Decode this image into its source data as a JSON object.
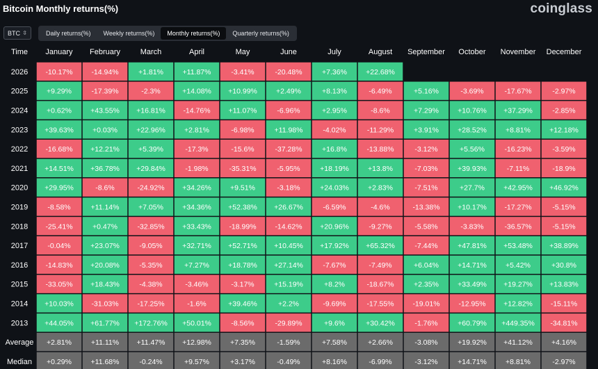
{
  "header": {
    "title": "Bitcoin Monthly returns(%)",
    "brand": "coinglass"
  },
  "controls": {
    "asset": "BTC",
    "tabs": [
      {
        "label": "Daily returns(%)",
        "active": false
      },
      {
        "label": "Weekly returns(%)",
        "active": false
      },
      {
        "label": "Monthly returns(%)",
        "active": true
      },
      {
        "label": "Quarterly returns(%)",
        "active": false
      }
    ]
  },
  "colors": {
    "positive": "#3dcc8a",
    "negative": "#f0616f",
    "summary": "#6b6b6b",
    "background": "#0f1217"
  },
  "chart_data": {
    "type": "table",
    "corner_label": "Time",
    "columns": [
      "January",
      "February",
      "March",
      "April",
      "May",
      "June",
      "July",
      "August",
      "September",
      "October",
      "November",
      "December"
    ],
    "rows": [
      {
        "label": "2026",
        "values": [
          "-10.17%",
          "-14.94%",
          "+1.81%",
          "+11.87%",
          "-3.41%",
          "-20.48%",
          "+7.36%",
          "+22.68%",
          null,
          null,
          null,
          null
        ]
      },
      {
        "label": "2025",
        "values": [
          "+9.29%",
          "-17.39%",
          "-2.3%",
          "+14.08%",
          "+10.99%",
          "+2.49%",
          "+8.13%",
          "-6.49%",
          "+5.16%",
          "-3.69%",
          "-17.67%",
          "-2.97%"
        ]
      },
      {
        "label": "2024",
        "values": [
          "+0.62%",
          "+43.55%",
          "+16.81%",
          "-14.76%",
          "+11.07%",
          "-6.96%",
          "+2.95%",
          "-8.6%",
          "+7.29%",
          "+10.76%",
          "+37.29%",
          "-2.85%"
        ]
      },
      {
        "label": "2023",
        "values": [
          "+39.63%",
          "+0.03%",
          "+22.96%",
          "+2.81%",
          "-6.98%",
          "+11.98%",
          "-4.02%",
          "-11.29%",
          "+3.91%",
          "+28.52%",
          "+8.81%",
          "+12.18%"
        ]
      },
      {
        "label": "2022",
        "values": [
          "-16.68%",
          "+12.21%",
          "+5.39%",
          "-17.3%",
          "-15.6%",
          "-37.28%",
          "+16.8%",
          "-13.88%",
          "-3.12%",
          "+5.56%",
          "-16.23%",
          "-3.59%"
        ]
      },
      {
        "label": "2021",
        "values": [
          "+14.51%",
          "+36.78%",
          "+29.84%",
          "-1.98%",
          "-35.31%",
          "-5.95%",
          "+18.19%",
          "+13.8%",
          "-7.03%",
          "+39.93%",
          "-7.11%",
          "-18.9%"
        ]
      },
      {
        "label": "2020",
        "values": [
          "+29.95%",
          "-8.6%",
          "-24.92%",
          "+34.26%",
          "+9.51%",
          "-3.18%",
          "+24.03%",
          "+2.83%",
          "-7.51%",
          "+27.7%",
          "+42.95%",
          "+46.92%"
        ]
      },
      {
        "label": "2019",
        "values": [
          "-8.58%",
          "+11.14%",
          "+7.05%",
          "+34.36%",
          "+52.38%",
          "+26.67%",
          "-6.59%",
          "-4.6%",
          "-13.38%",
          "+10.17%",
          "-17.27%",
          "-5.15%"
        ]
      },
      {
        "label": "2018",
        "values": [
          "-25.41%",
          "+0.47%",
          "-32.85%",
          "+33.43%",
          "-18.99%",
          "-14.62%",
          "+20.96%",
          "-9.27%",
          "-5.58%",
          "-3.83%",
          "-36.57%",
          "-5.15%"
        ]
      },
      {
        "label": "2017",
        "values": [
          "-0.04%",
          "+23.07%",
          "-9.05%",
          "+32.71%",
          "+52.71%",
          "+10.45%",
          "+17.92%",
          "+65.32%",
          "-7.44%",
          "+47.81%",
          "+53.48%",
          "+38.89%"
        ]
      },
      {
        "label": "2016",
        "values": [
          "-14.83%",
          "+20.08%",
          "-5.35%",
          "+7.27%",
          "+18.78%",
          "+27.14%",
          "-7.67%",
          "-7.49%",
          "+6.04%",
          "+14.71%",
          "+5.42%",
          "+30.8%"
        ]
      },
      {
        "label": "2015",
        "values": [
          "-33.05%",
          "+18.43%",
          "-4.38%",
          "-3.46%",
          "-3.17%",
          "+15.19%",
          "+8.2%",
          "-18.67%",
          "+2.35%",
          "+33.49%",
          "+19.27%",
          "+13.83%"
        ]
      },
      {
        "label": "2014",
        "values": [
          "+10.03%",
          "-31.03%",
          "-17.25%",
          "-1.6%",
          "+39.46%",
          "+2.2%",
          "-9.69%",
          "-17.55%",
          "-19.01%",
          "-12.95%",
          "+12.82%",
          "-15.11%"
        ]
      },
      {
        "label": "2013",
        "values": [
          "+44.05%",
          "+61.77%",
          "+172.76%",
          "+50.01%",
          "-8.56%",
          "-29.89%",
          "+9.6%",
          "+30.42%",
          "-1.76%",
          "+60.79%",
          "+449.35%",
          "-34.81%"
        ]
      }
    ],
    "summary_rows": [
      {
        "label": "Average",
        "values": [
          "+2.81%",
          "+11.11%",
          "+11.47%",
          "+12.98%",
          "+7.35%",
          "-1.59%",
          "+7.58%",
          "+2.66%",
          "-3.08%",
          "+19.92%",
          "+41.12%",
          "+4.16%"
        ]
      },
      {
        "label": "Median",
        "values": [
          "+0.29%",
          "+11.68%",
          "-0.24%",
          "+9.57%",
          "+3.17%",
          "-0.49%",
          "+8.16%",
          "-6.99%",
          "-3.12%",
          "+14.71%",
          "+8.81%",
          "-2.97%"
        ]
      }
    ]
  }
}
